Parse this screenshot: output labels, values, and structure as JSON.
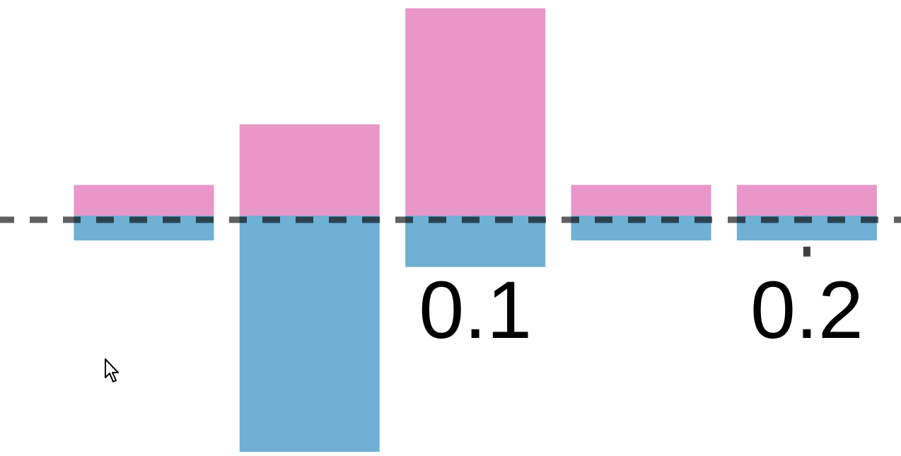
{
  "chart_data": {
    "type": "bar",
    "bar_mode": "diverging",
    "x": [
      0,
      0.05,
      0.1,
      0.15,
      0.2
    ],
    "xlim": [
      -0.0434,
      0.2284
    ],
    "ylim": [
      -2.9,
      2.6
    ],
    "xticks": [
      0.1,
      0.2
    ],
    "xtick_labels": [
      "0.1",
      "0.2"
    ],
    "grid": false,
    "legend": "none",
    "series": [
      {
        "color": "#e897c8",
        "values": [
          0.37,
          1.1,
          2.5,
          0.37,
          0.37
        ]
      },
      {
        "color": "#6fb0d3",
        "values": [
          -0.3,
          -2.85,
          -0.62,
          -0.3,
          -0.3
        ]
      }
    ],
    "baseline": {
      "y": 0,
      "style": "dashed",
      "color": "#000000"
    }
  },
  "cursor": {
    "icon": "mouse-pointer-icon"
  }
}
